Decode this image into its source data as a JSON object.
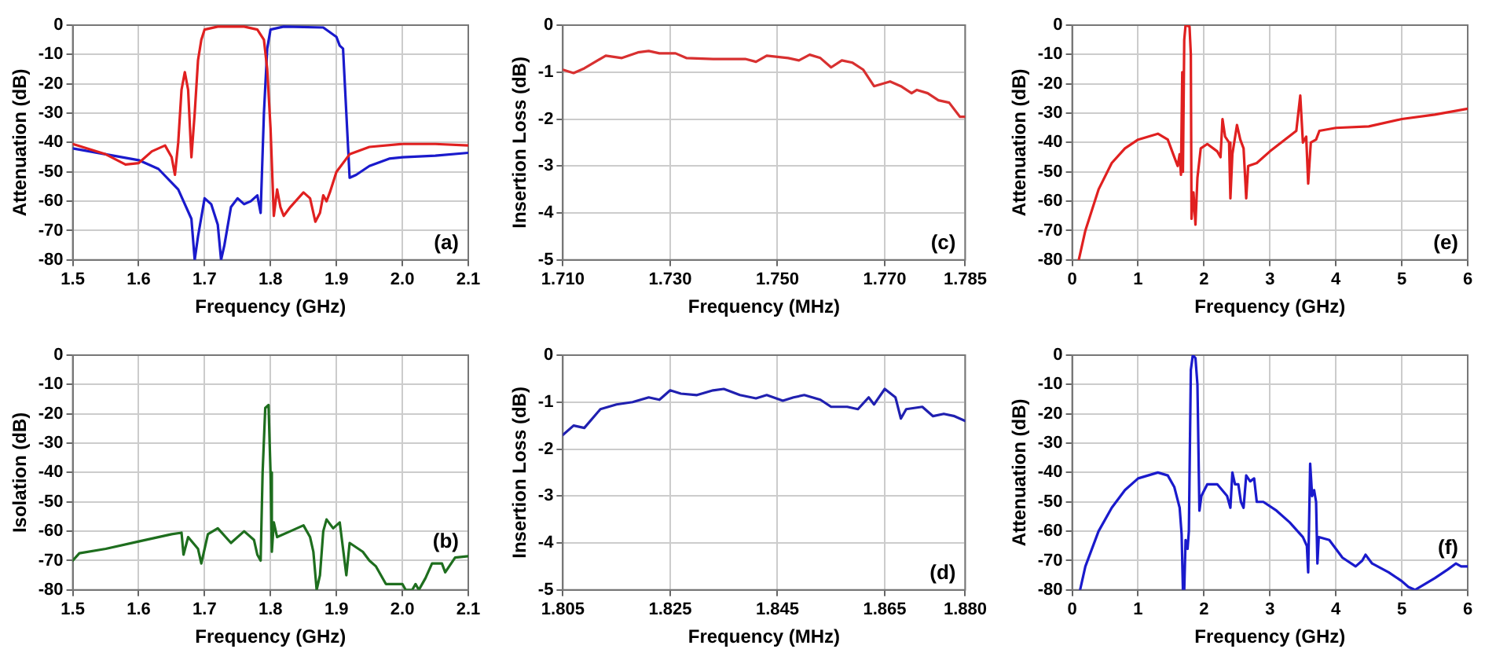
{
  "chart_data": [
    {
      "type": "line",
      "xlabel": "Frequency (GHz)",
      "ylabel": "Attenuation (dB)",
      "annotations": [
        "(a)"
      ],
      "grid": true,
      "legend": false,
      "marker": "none",
      "xlim": [
        1.5,
        2.1
      ],
      "xticks": [
        1.5,
        1.6,
        1.7,
        1.8,
        1.9,
        {
          "value": 2.0,
          "label": "2.0"
        },
        2.1
      ],
      "ylim": [
        -80,
        0
      ],
      "yticks": [
        -80,
        -70,
        -60,
        -50,
        -40,
        -30,
        -20,
        -10,
        0
      ],
      "series": [
        {
          "color": "#e02020",
          "x": [
            1.5,
            1.55,
            1.58,
            1.6,
            1.62,
            1.64,
            1.65,
            1.655,
            1.66,
            1.665,
            1.67,
            1.675,
            1.68,
            1.685,
            1.69,
            1.695,
            1.7,
            1.72,
            1.76,
            1.78,
            1.79,
            1.795,
            1.8,
            1.805,
            1.81,
            1.815,
            1.82,
            1.83,
            1.85,
            1.86,
            1.868,
            1.875,
            1.88,
            1.885,
            1.89,
            1.9,
            1.92,
            1.95,
            2.0,
            2.05,
            2.1
          ],
          "values": [
            -40.5,
            -44,
            -47.5,
            -47,
            -43,
            -41,
            -45,
            -51,
            -40,
            -22,
            -16,
            -22,
            -45,
            -30,
            -12,
            -5,
            -1.5,
            -0.5,
            -0.5,
            -1.5,
            -5,
            -15,
            -35,
            -65,
            -56,
            -62,
            -65,
            -62,
            -57,
            -59,
            -67,
            -64,
            -58,
            -60,
            -57,
            -50,
            -44,
            -41.5,
            -40.5,
            -40.5,
            -41
          ]
        },
        {
          "color": "#1a1acc",
          "x": [
            1.5,
            1.55,
            1.6,
            1.63,
            1.66,
            1.68,
            1.685,
            1.69,
            1.7,
            1.71,
            1.72,
            1.725,
            1.73,
            1.74,
            1.75,
            1.76,
            1.77,
            1.78,
            1.785,
            1.79,
            1.795,
            1.8,
            1.82,
            1.88,
            1.9,
            1.905,
            1.91,
            1.915,
            1.92,
            1.93,
            1.95,
            1.98,
            2.0,
            2.05,
            2.1
          ],
          "values": [
            -42,
            -44,
            -46,
            -49,
            -56,
            -66,
            -80,
            -72,
            -59,
            -61,
            -68,
            -80,
            -75,
            -62,
            -59,
            -61,
            -60,
            -58,
            -64,
            -30,
            -8,
            -1.5,
            -0.5,
            -0.8,
            -4,
            -7,
            -8,
            -30,
            -52,
            -51,
            -48,
            -45.5,
            -45,
            -44.5,
            -43.5
          ]
        }
      ]
    },
    {
      "type": "line",
      "xlabel": "Frequency (MHz)",
      "ylabel": "Insertion Loss (dB)",
      "annotations": [
        "(c)"
      ],
      "grid": true,
      "legend": false,
      "marker": "none",
      "xlim": [
        1.71,
        1.785
      ],
      "xticks": [
        {
          "value": 1.71,
          "label": "1.710"
        },
        {
          "value": 1.73,
          "label": "1.730"
        },
        {
          "value": 1.75,
          "label": "1.750"
        },
        {
          "value": 1.77,
          "label": "1.770"
        },
        1.785
      ],
      "ylim": [
        -5,
        0
      ],
      "yticks": [
        -5,
        -4,
        -3,
        -2,
        -1,
        0
      ],
      "series": [
        {
          "color": "#d83030",
          "x": [
            1.71,
            1.712,
            1.714,
            1.718,
            1.721,
            1.724,
            1.726,
            1.728,
            1.731,
            1.733,
            1.738,
            1.744,
            1.746,
            1.748,
            1.752,
            1.754,
            1.756,
            1.758,
            1.76,
            1.762,
            1.764,
            1.766,
            1.768,
            1.771,
            1.773,
            1.775,
            1.776,
            1.778,
            1.78,
            1.782,
            1.784,
            1.785
          ],
          "values": [
            -0.95,
            -1.02,
            -0.92,
            -0.65,
            -0.7,
            -0.58,
            -0.55,
            -0.6,
            -0.6,
            -0.7,
            -0.72,
            -0.72,
            -0.78,
            -0.65,
            -0.7,
            -0.75,
            -0.63,
            -0.7,
            -0.9,
            -0.75,
            -0.8,
            -0.95,
            -1.3,
            -1.2,
            -1.3,
            -1.45,
            -1.38,
            -1.45,
            -1.6,
            -1.65,
            -1.95,
            -1.95
          ]
        }
      ]
    },
    {
      "type": "line",
      "xlabel": "Frequency (GHz)",
      "ylabel": "Attenuation (dB)",
      "annotations": [
        "(e)"
      ],
      "grid": true,
      "legend": false,
      "marker": "none",
      "xlim": [
        0,
        6
      ],
      "xticks": [
        0,
        1,
        2,
        3,
        4,
        5,
        6
      ],
      "ylim": [
        -80,
        0
      ],
      "yticks": [
        -80,
        -70,
        -60,
        -50,
        -40,
        -30,
        -20,
        -10,
        0
      ],
      "series": [
        {
          "color": "#e02020",
          "x": [
            0.1,
            0.2,
            0.4,
            0.6,
            0.8,
            1.0,
            1.3,
            1.45,
            1.55,
            1.6,
            1.63,
            1.65,
            1.67,
            1.68,
            1.7,
            1.72,
            1.78,
            1.8,
            1.81,
            1.84,
            1.87,
            1.9,
            1.95,
            2.05,
            2.2,
            2.25,
            2.28,
            2.32,
            2.38,
            2.4,
            2.43,
            2.5,
            2.55,
            2.6,
            2.64,
            2.67,
            2.8,
            3.0,
            3.2,
            3.4,
            3.46,
            3.5,
            3.55,
            3.58,
            3.62,
            3.7,
            3.75,
            4.0,
            4.5,
            5.0,
            5.5,
            6.0
          ],
          "values": [
            -80,
            -70,
            -56,
            -47,
            -42,
            -39,
            -37,
            -39,
            -45,
            -48,
            -44,
            -51,
            -16,
            -50,
            -5,
            0,
            -0.5,
            -10,
            -66,
            -57,
            -68,
            -52,
            -42,
            -40.5,
            -43,
            -45,
            -32,
            -38,
            -40,
            -59,
            -44,
            -34,
            -39,
            -42,
            -59,
            -48,
            -47,
            -43,
            -39.5,
            -36,
            -24,
            -40,
            -38,
            -54,
            -40,
            -39,
            -36,
            -35,
            -34.5,
            -32,
            -30.5,
            -28.5
          ]
        }
      ]
    },
    {
      "type": "line",
      "xlabel": "Frequency (GHz)",
      "ylabel": "Isolation (dB)",
      "annotations": [
        "(b)"
      ],
      "grid": true,
      "legend": false,
      "marker": "none",
      "xlim": [
        1.5,
        2.1
      ],
      "xticks": [
        1.5,
        1.6,
        1.7,
        1.8,
        1.9,
        {
          "value": 2.0,
          "label": "2.0"
        },
        2.1
      ],
      "ylim": [
        -80,
        0
      ],
      "yticks": [
        -80,
        -70,
        -60,
        -50,
        -40,
        -30,
        -20,
        -10,
        0
      ],
      "series": [
        {
          "color": "#1e6e1e",
          "x": [
            1.5,
            1.51,
            1.55,
            1.6,
            1.65,
            1.665,
            1.668,
            1.675,
            1.69,
            1.695,
            1.705,
            1.72,
            1.74,
            1.76,
            1.775,
            1.78,
            1.785,
            1.788,
            1.792,
            1.797,
            1.8,
            1.802,
            1.805,
            1.81,
            1.83,
            1.85,
            1.86,
            1.865,
            1.87,
            1.875,
            1.88,
            1.885,
            1.895,
            1.905,
            1.915,
            1.92,
            1.94,
            1.95,
            1.96,
            1.975,
            2.0,
            2.005,
            2.015,
            2.02,
            2.025,
            2.035,
            2.045,
            2.06,
            2.065,
            2.08,
            2.1
          ],
          "values": [
            -70,
            -67.5,
            -66,
            -63.5,
            -61,
            -60.5,
            -68,
            -62,
            -66,
            -71,
            -61,
            -59,
            -64,
            -60,
            -63,
            -68,
            -70,
            -40,
            -18,
            -17,
            -40,
            -67,
            -57,
            -62,
            -60,
            -58,
            -62,
            -67,
            -80,
            -75,
            -60,
            -56,
            -59,
            -57,
            -75,
            -64,
            -67,
            -70,
            -72,
            -78,
            -78,
            -80,
            -80,
            -78,
            -80,
            -76,
            -71,
            -71,
            -74,
            -69,
            -68.5
          ]
        }
      ]
    },
    {
      "type": "line",
      "xlabel": "Frequency (MHz)",
      "ylabel": "Insertion Loss (dB)",
      "annotations": [
        "(d)"
      ],
      "grid": true,
      "legend": false,
      "marker": "none",
      "xlim": [
        1.805,
        1.88
      ],
      "xticks": [
        1.805,
        1.825,
        1.845,
        1.865,
        {
          "value": 1.88,
          "label": "1.880"
        }
      ],
      "ylim": [
        -5,
        0
      ],
      "yticks": [
        -5,
        -4,
        -3,
        -2,
        -1,
        0
      ],
      "series": [
        {
          "color": "#2020b0",
          "x": [
            1.805,
            1.807,
            1.809,
            1.812,
            1.815,
            1.818,
            1.821,
            1.823,
            1.825,
            1.827,
            1.83,
            1.833,
            1.835,
            1.838,
            1.841,
            1.843,
            1.846,
            1.848,
            1.85,
            1.853,
            1.855,
            1.858,
            1.86,
            1.862,
            1.863,
            1.865,
            1.867,
            1.868,
            1.869,
            1.872,
            1.874,
            1.876,
            1.878,
            1.88
          ],
          "values": [
            -1.7,
            -1.5,
            -1.55,
            -1.15,
            -1.05,
            -1.0,
            -0.9,
            -0.95,
            -0.75,
            -0.82,
            -0.85,
            -0.75,
            -0.72,
            -0.85,
            -0.92,
            -0.85,
            -0.97,
            -0.9,
            -0.85,
            -0.95,
            -1.1,
            -1.1,
            -1.15,
            -0.9,
            -1.05,
            -0.72,
            -0.9,
            -1.35,
            -1.15,
            -1.1,
            -1.3,
            -1.25,
            -1.3,
            -1.4
          ]
        }
      ]
    },
    {
      "type": "line",
      "xlabel": "Frequency (GHz)",
      "ylabel": "Attenuation (dB)",
      "annotations": [
        "(f)"
      ],
      "grid": true,
      "legend": false,
      "marker": "none",
      "xlim": [
        0,
        6
      ],
      "xticks": [
        0,
        1,
        2,
        3,
        4,
        5,
        6
      ],
      "ylim": [
        -80,
        0
      ],
      "yticks": [
        -80,
        -70,
        -60,
        -50,
        -40,
        -30,
        -20,
        -10,
        0
      ],
      "series": [
        {
          "color": "#1a1acc",
          "x": [
            0.12,
            0.2,
            0.4,
            0.6,
            0.8,
            1.0,
            1.3,
            1.45,
            1.55,
            1.63,
            1.66,
            1.68,
            1.7,
            1.72,
            1.75,
            1.77,
            1.8,
            1.83,
            1.87,
            1.9,
            1.93,
            1.96,
            2.05,
            2.2,
            2.35,
            2.4,
            2.43,
            2.47,
            2.52,
            2.56,
            2.6,
            2.64,
            2.7,
            2.76,
            2.8,
            2.9,
            3.1,
            3.3,
            3.5,
            3.56,
            3.58,
            3.61,
            3.64,
            3.67,
            3.7,
            3.72,
            3.74,
            3.9,
            4.1,
            4.3,
            4.4,
            4.45,
            4.55,
            4.8,
            5.0,
            5.1,
            5.2,
            5.35,
            5.5,
            5.7,
            5.82,
            5.9,
            6.0
          ],
          "values": [
            -80,
            -72,
            -60,
            -52,
            -46,
            -42,
            -40,
            -41,
            -45,
            -52,
            -61,
            -80,
            -80,
            -63,
            -66,
            -60,
            -5,
            0,
            -1,
            -10,
            -53,
            -48,
            -44,
            -44,
            -48,
            -52,
            -40,
            -44,
            -44,
            -50,
            -52,
            -41,
            -43,
            -42,
            -50,
            -50,
            -53,
            -57,
            -62,
            -65,
            -74,
            -37,
            -48,
            -46,
            -50,
            -71,
            -62,
            -63,
            -69,
            -72,
            -70,
            -68,
            -71,
            -74,
            -77,
            -79,
            -80,
            -78,
            -76,
            -73,
            -71,
            -72,
            -72
          ]
        }
      ]
    }
  ]
}
